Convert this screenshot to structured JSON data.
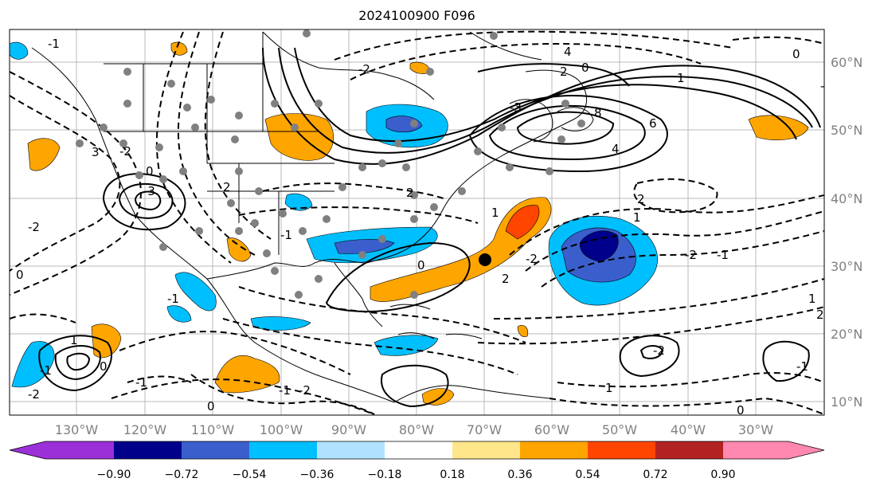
{
  "title": "2024100900 F096",
  "lat_labels": [
    "60°N",
    "50°N",
    "40°N",
    "30°N",
    "20°N",
    "10°N"
  ],
  "lon_labels": [
    "130°W",
    "120°W",
    "110°W",
    "100°W",
    "90°W",
    "80°W",
    "70°W",
    "60°W",
    "50°W",
    "40°W",
    "30°W"
  ],
  "colorbar": {
    "ticks": [
      "−0.90",
      "−0.72",
      "−0.54",
      "−0.36",
      "−0.18",
      "0.18",
      "0.36",
      "0.54",
      "0.72",
      "0.90"
    ],
    "colors": [
      "#9b30d9",
      "#00008b",
      "#3a5fcd",
      "#00bfff",
      "#b0e2ff",
      "#ffffff",
      "#ffe68a",
      "#ffa500",
      "#ff4500",
      "#b22222",
      "#ff88b0"
    ]
  },
  "contour_labels": [
    "4",
    "2",
    "1",
    "0",
    "-1",
    "-2",
    "-3",
    "8",
    "6",
    "4",
    "2",
    "1",
    "-2",
    "-1",
    "2",
    "3",
    "-3",
    "-2",
    "0",
    "2",
    "-1",
    "-2",
    "0",
    "1",
    "0",
    "-1",
    "-1",
    "-2",
    "2",
    "1",
    "-1",
    "0",
    "-2",
    "1",
    "-1",
    "0",
    "1",
    "2",
    "-2",
    "-1",
    "0",
    "-1",
    "0",
    "-2"
  ]
}
